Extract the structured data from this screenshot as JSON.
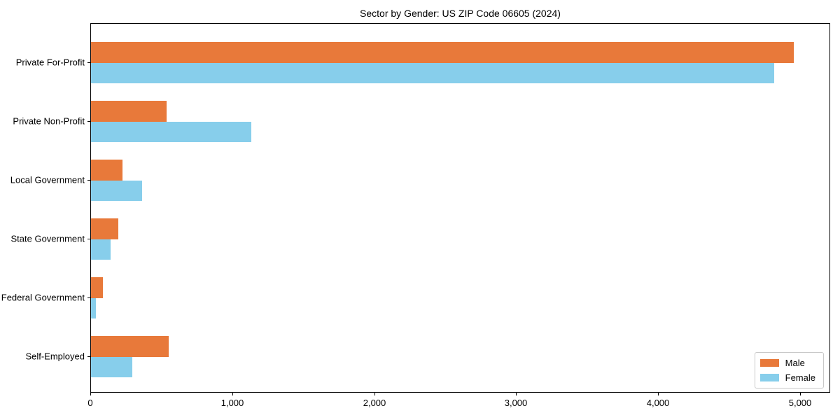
{
  "chart_data": {
    "type": "bar",
    "orientation": "horizontal",
    "title": "Sector by Gender: US ZIP Code 06605 (2024)",
    "categories": [
      "Private For-Profit",
      "Private Non-Profit",
      "Local Government",
      "State Government",
      "Federal Government",
      "Self-Employed"
    ],
    "series": [
      {
        "name": "Male",
        "color": "#e8793a",
        "values": [
          4950,
          535,
          220,
          190,
          85,
          545
        ]
      },
      {
        "name": "Female",
        "color": "#87ceeb",
        "values": [
          4815,
          1130,
          360,
          140,
          35,
          290
        ]
      }
    ],
    "xlabel": "",
    "ylabel": "",
    "xlim": [
      0,
      5212
    ],
    "x_ticks": [
      0,
      1000,
      2000,
      3000,
      4000,
      5000
    ],
    "x_tick_labels": [
      "0",
      "1,000",
      "2,000",
      "3,000",
      "4,000",
      "5,000"
    ],
    "legend_position": "lower-right",
    "grid": false,
    "colors": {
      "background": "#ffffff",
      "spine": "#000000",
      "text": "#000000"
    }
  }
}
